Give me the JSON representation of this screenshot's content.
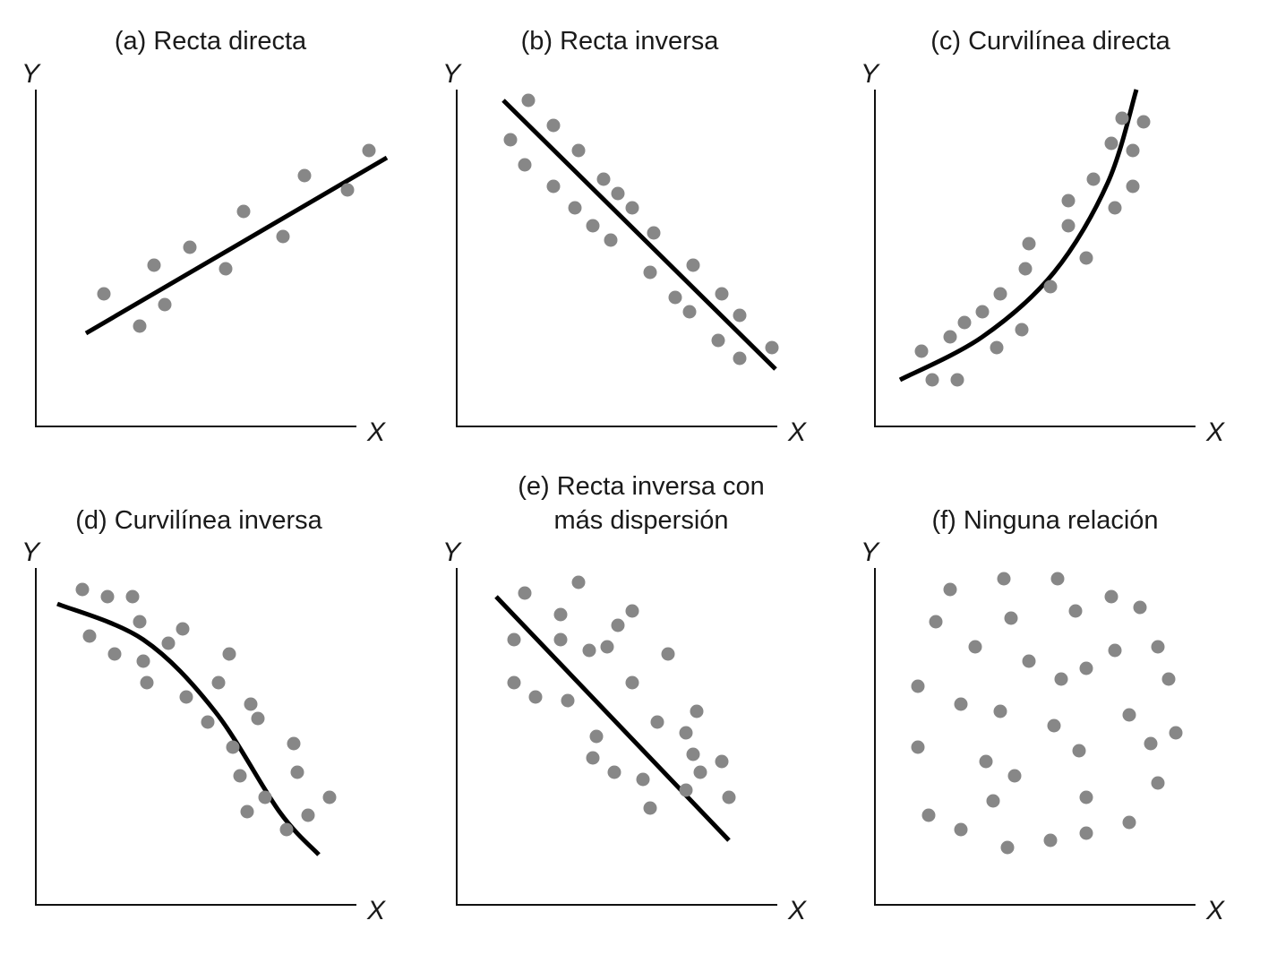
{
  "colors": {
    "point": "#878787",
    "trend": "#000000",
    "axis": "#111111"
  },
  "chart_data": [
    {
      "type": "scatter",
      "title": "(a) Recta directa",
      "xlabel": "X",
      "ylabel": "Y",
      "xlim": [
        0,
        10
      ],
      "ylim": [
        0,
        10
      ],
      "legend": "none",
      "grid": false,
      "points": [
        [
          1.9,
          3.7
        ],
        [
          2.9,
          2.8
        ],
        [
          3.3,
          4.5
        ],
        [
          3.6,
          3.4
        ],
        [
          4.3,
          5.0
        ],
        [
          5.3,
          4.4
        ],
        [
          5.8,
          6.0
        ],
        [
          6.9,
          5.3
        ],
        [
          7.5,
          7.0
        ],
        [
          8.7,
          6.6
        ],
        [
          9.3,
          7.7
        ]
      ],
      "trendline": {
        "kind": "linear",
        "points": [
          [
            1.4,
            2.6
          ],
          [
            9.8,
            7.5
          ]
        ]
      }
    },
    {
      "type": "scatter",
      "title": "(b) Recta inversa",
      "xlabel": "X",
      "ylabel": "Y",
      "xlim": [
        0,
        10
      ],
      "ylim": [
        0,
        10
      ],
      "legend": "none",
      "grid": false,
      "points": [
        [
          1.5,
          8.0
        ],
        [
          1.9,
          7.3
        ],
        [
          2.0,
          9.1
        ],
        [
          2.7,
          6.7
        ],
        [
          2.7,
          8.4
        ],
        [
          3.3,
          6.1
        ],
        [
          3.4,
          7.7
        ],
        [
          3.8,
          5.6
        ],
        [
          4.1,
          6.9
        ],
        [
          4.3,
          5.2
        ],
        [
          4.5,
          6.5
        ],
        [
          4.9,
          6.1
        ],
        [
          5.4,
          4.3
        ],
        [
          5.5,
          5.4
        ],
        [
          6.1,
          3.6
        ],
        [
          6.5,
          3.2
        ],
        [
          6.6,
          4.5
        ],
        [
          7.3,
          2.4
        ],
        [
          7.4,
          3.7
        ],
        [
          7.9,
          1.9
        ],
        [
          7.9,
          3.1
        ],
        [
          8.8,
          2.2
        ]
      ],
      "trendline": {
        "kind": "linear",
        "points": [
          [
            1.3,
            9.1
          ],
          [
            8.9,
            1.6
          ]
        ]
      }
    },
    {
      "type": "scatter",
      "title": "(c) Curvilínea directa",
      "xlabel": "X",
      "ylabel": "Y",
      "xlim": [
        0,
        10
      ],
      "ylim": [
        0,
        10
      ],
      "legend": "none",
      "grid": false,
      "points": [
        [
          1.3,
          2.1
        ],
        [
          1.6,
          1.3
        ],
        [
          2.1,
          2.5
        ],
        [
          2.3,
          1.3
        ],
        [
          2.5,
          2.9
        ],
        [
          3.0,
          3.2
        ],
        [
          3.4,
          2.2
        ],
        [
          3.5,
          3.7
        ],
        [
          4.1,
          2.7
        ],
        [
          4.2,
          4.4
        ],
        [
          4.3,
          5.1
        ],
        [
          4.9,
          3.9
        ],
        [
          5.4,
          5.6
        ],
        [
          5.4,
          6.3
        ],
        [
          5.9,
          4.7
        ],
        [
          6.1,
          6.9
        ],
        [
          6.6,
          7.9
        ],
        [
          6.7,
          6.1
        ],
        [
          6.9,
          8.6
        ],
        [
          7.2,
          7.7
        ],
        [
          7.2,
          6.7
        ],
        [
          7.5,
          8.5
        ]
      ],
      "trendline": {
        "kind": "exponential",
        "points": [
          [
            0.7,
            1.3
          ],
          [
            3.0,
            2.5
          ],
          [
            5.0,
            4.3
          ],
          [
            6.5,
            6.8
          ],
          [
            7.3,
            9.4
          ]
        ]
      }
    },
    {
      "type": "scatter",
      "title": "(d) Curvilínea inversa",
      "xlabel": "X",
      "ylabel": "Y",
      "xlim": [
        0,
        10
      ],
      "ylim": [
        0,
        10
      ],
      "legend": "none",
      "grid": false,
      "points": [
        [
          1.3,
          8.8
        ],
        [
          1.5,
          7.5
        ],
        [
          2.0,
          8.6
        ],
        [
          2.2,
          7.0
        ],
        [
          2.7,
          8.6
        ],
        [
          2.9,
          7.9
        ],
        [
          3.0,
          6.8
        ],
        [
          3.1,
          6.2
        ],
        [
          3.7,
          7.3
        ],
        [
          4.1,
          7.7
        ],
        [
          4.2,
          5.8
        ],
        [
          4.8,
          5.1
        ],
        [
          5.1,
          6.2
        ],
        [
          5.4,
          7.0
        ],
        [
          5.5,
          4.4
        ],
        [
          5.7,
          3.6
        ],
        [
          5.9,
          2.6
        ],
        [
          6.0,
          5.6
        ],
        [
          6.2,
          5.2
        ],
        [
          6.4,
          3.0
        ],
        [
          7.0,
          2.1
        ],
        [
          7.2,
          4.5
        ],
        [
          7.3,
          3.7
        ],
        [
          7.6,
          2.5
        ],
        [
          8.2,
          3.0
        ]
      ],
      "trendline": {
        "kind": "concave",
        "points": [
          [
            0.6,
            8.4
          ],
          [
            3.0,
            7.4
          ],
          [
            5.0,
            5.4
          ],
          [
            6.8,
            2.6
          ],
          [
            7.9,
            1.4
          ]
        ]
      }
    },
    {
      "type": "scatter",
      "title": "(e) Recta inversa con más dispersión",
      "xlabel": "X",
      "ylabel": "Y",
      "xlim": [
        0,
        10
      ],
      "ylim": [
        0,
        10
      ],
      "legend": "none",
      "grid": false,
      "points": [
        [
          1.6,
          6.2
        ],
        [
          1.6,
          7.4
        ],
        [
          1.9,
          8.7
        ],
        [
          2.2,
          5.8
        ],
        [
          2.9,
          8.1
        ],
        [
          2.9,
          7.4
        ],
        [
          3.1,
          5.7
        ],
        [
          3.4,
          9.0
        ],
        [
          3.7,
          7.1
        ],
        [
          3.9,
          4.7
        ],
        [
          3.8,
          4.1
        ],
        [
          4.2,
          7.2
        ],
        [
          4.4,
          3.7
        ],
        [
          4.5,
          7.8
        ],
        [
          4.9,
          6.2
        ],
        [
          4.9,
          8.2
        ],
        [
          5.2,
          3.5
        ],
        [
          5.4,
          2.7
        ],
        [
          5.6,
          5.1
        ],
        [
          5.9,
          7.0
        ],
        [
          6.4,
          4.8
        ],
        [
          6.4,
          3.2
        ],
        [
          6.6,
          4.2
        ],
        [
          6.7,
          5.4
        ],
        [
          6.8,
          3.7
        ],
        [
          7.4,
          4.0
        ],
        [
          7.6,
          3.0
        ]
      ],
      "trendline": {
        "kind": "linear",
        "points": [
          [
            1.1,
            8.6
          ],
          [
            7.6,
            1.8
          ]
        ]
      }
    },
    {
      "type": "scatter",
      "title": "(f) Ninguna relación",
      "xlabel": "X",
      "ylabel": "Y",
      "xlim": [
        0,
        10
      ],
      "ylim": [
        0,
        10
      ],
      "legend": "none",
      "grid": false,
      "points": [
        [
          1.2,
          6.1
        ],
        [
          1.2,
          4.4
        ],
        [
          1.5,
          2.5
        ],
        [
          1.7,
          7.9
        ],
        [
          2.1,
          8.8
        ],
        [
          2.4,
          2.1
        ],
        [
          2.4,
          5.6
        ],
        [
          2.8,
          7.2
        ],
        [
          3.1,
          4.0
        ],
        [
          3.3,
          2.9
        ],
        [
          3.5,
          5.4
        ],
        [
          3.6,
          9.1
        ],
        [
          3.7,
          1.6
        ],
        [
          3.9,
          3.6
        ],
        [
          3.8,
          8.0
        ],
        [
          4.3,
          6.8
        ],
        [
          4.9,
          1.8
        ],
        [
          5.1,
          9.1
        ],
        [
          5.0,
          5.0
        ],
        [
          5.2,
          6.3
        ],
        [
          5.6,
          8.2
        ],
        [
          5.7,
          4.3
        ],
        [
          5.9,
          3.0
        ],
        [
          5.9,
          2.0
        ],
        [
          5.9,
          6.6
        ],
        [
          6.6,
          8.6
        ],
        [
          6.7,
          7.1
        ],
        [
          7.1,
          5.3
        ],
        [
          7.1,
          2.3
        ],
        [
          7.4,
          8.3
        ],
        [
          7.7,
          4.5
        ],
        [
          7.9,
          3.4
        ],
        [
          7.9,
          7.2
        ],
        [
          8.2,
          6.3
        ],
        [
          8.4,
          4.8
        ]
      ]
    }
  ]
}
